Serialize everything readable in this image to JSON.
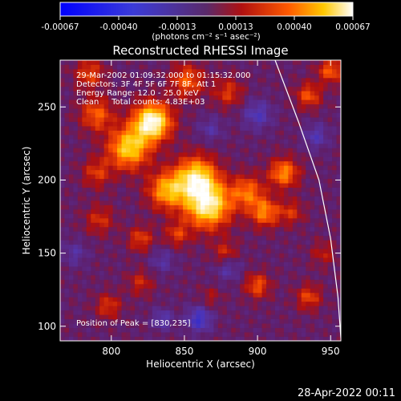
{
  "chart_data": {
    "type": "heatmap",
    "title": "Reconstructed RHESSI Image",
    "xlabel": "Heliocentric X (arcsec)",
    "ylabel": "Heliocentric Y (arcsec)",
    "xlim": [
      765,
      957
    ],
    "ylim": [
      90,
      282
    ],
    "x_ticks": [
      "800",
      "850",
      "900",
      "950"
    ],
    "y_ticks": [
      "100",
      "150",
      "200",
      "250"
    ],
    "colorbar": {
      "min": -0.00067,
      "max": 0.00067,
      "ticks": [
        "-0.00067",
        "-0.00040",
        "-0.00013",
        "0.00013",
        "0.00040",
        "0.00067"
      ],
      "unit_label": "(photons cm⁻² s⁻¹ asec⁻²)"
    },
    "annotations": [
      "29-Mar-2002 01:09:32.000 to 01:15:32.000",
      "Detectors: 3F 4F 5F 6F 7F 8F, Att 1",
      "Energy Range: 12.0 - 25.0 keV",
      "Clean     Total counts: 4.83E+03"
    ],
    "peak_label": "Position of Peak = [830,235]",
    "peak": [
      830,
      235
    ],
    "emission_blobs": [
      {
        "x": 828,
        "y": 240,
        "value": 0.00067,
        "sigma": 9
      },
      {
        "x": 812,
        "y": 222,
        "value": 0.0005,
        "sigma": 10
      },
      {
        "x": 866,
        "y": 183,
        "value": 0.0006,
        "sigma": 11
      },
      {
        "x": 858,
        "y": 202,
        "value": 0.00052,
        "sigma": 10
      },
      {
        "x": 838,
        "y": 193,
        "value": 0.00042,
        "sigma": 9
      },
      {
        "x": 893,
        "y": 192,
        "value": 0.00032,
        "sigma": 8
      },
      {
        "x": 905,
        "y": 178,
        "value": 0.00035,
        "sigma": 7
      },
      {
        "x": 918,
        "y": 205,
        "value": 0.00038,
        "sigma": 7
      },
      {
        "x": 790,
        "y": 245,
        "value": 0.0003,
        "sigma": 8
      },
      {
        "x": 785,
        "y": 273,
        "value": 0.00025,
        "sigma": 7
      },
      {
        "x": 852,
        "y": 268,
        "value": 0.0003,
        "sigma": 8
      },
      {
        "x": 880,
        "y": 260,
        "value": 0.00022,
        "sigma": 7
      },
      {
        "x": 935,
        "y": 258,
        "value": 0.00028,
        "sigma": 6
      },
      {
        "x": 950,
        "y": 275,
        "value": 0.0003,
        "sigma": 6
      },
      {
        "x": 790,
        "y": 205,
        "value": 0.00022,
        "sigma": 7
      },
      {
        "x": 792,
        "y": 173,
        "value": 0.0002,
        "sigma": 7
      },
      {
        "x": 820,
        "y": 160,
        "value": 0.00024,
        "sigma": 6
      },
      {
        "x": 845,
        "y": 163,
        "value": 0.00022,
        "sigma": 6
      },
      {
        "x": 878,
        "y": 150,
        "value": 0.0002,
        "sigma": 6
      },
      {
        "x": 820,
        "y": 130,
        "value": 0.00018,
        "sigma": 6
      },
      {
        "x": 798,
        "y": 114,
        "value": 0.00022,
        "sigma": 6
      },
      {
        "x": 900,
        "y": 128,
        "value": 0.00028,
        "sigma": 6
      },
      {
        "x": 935,
        "y": 120,
        "value": 0.00025,
        "sigma": 6
      },
      {
        "x": 923,
        "y": 178,
        "value": 0.0002,
        "sigma": 6
      },
      {
        "x": 945,
        "y": 150,
        "value": 0.00015,
        "sigma": 6
      },
      {
        "x": 868,
        "y": 120,
        "value": 0.00012,
        "sigma": 5
      },
      {
        "x": 860,
        "y": 105,
        "value": -0.0003,
        "sigma": 6
      },
      {
        "x": 835,
        "y": 105,
        "value": -0.0002,
        "sigma": 5
      },
      {
        "x": 900,
        "y": 245,
        "value": -0.00022,
        "sigma": 7
      },
      {
        "x": 868,
        "y": 235,
        "value": -0.00015,
        "sigma": 6
      },
      {
        "x": 940,
        "y": 230,
        "value": -0.0002,
        "sigma": 6
      },
      {
        "x": 880,
        "y": 140,
        "value": -0.00018,
        "sigma": 6
      },
      {
        "x": 835,
        "y": 145,
        "value": -0.00015,
        "sigma": 6
      },
      {
        "x": 775,
        "y": 150,
        "value": -0.00015,
        "sigma": 6
      }
    ],
    "limb_curve": [
      [
        912,
        282
      ],
      [
        928,
        240
      ],
      [
        942,
        200
      ],
      [
        950,
        160
      ],
      [
        955,
        120
      ],
      [
        957,
        92
      ]
    ]
  },
  "timestamp": "28-Apr-2022 00:11"
}
